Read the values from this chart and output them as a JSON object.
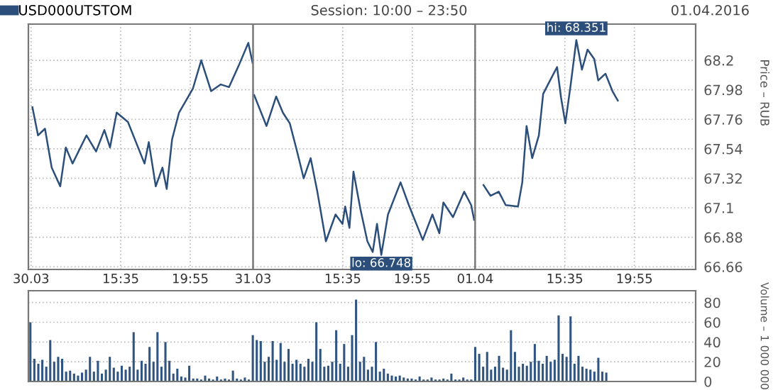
{
  "chart_data": [
    {
      "type": "line",
      "legend": "top left",
      "grid": true,
      "marker": "none",
      "line_style": "solid",
      "tick_labels": "x",
      "xlim": [
        "2016-03-30T09:50",
        "2016-03-30T23:50"
      ],
      "xticks": [
        {
          "value": "2016-03-30T10:00",
          "label": "30.03"
        },
        {
          "value": "2016-03-30T15:35",
          "label": "15:35"
        },
        {
          "value": "2016-03-30T19:55",
          "label": "19:55"
        }
      ],
      "ylim": [
        66.64,
        68.47
      ],
      "yticks": [
        66.66,
        66.88,
        67.1,
        67.32,
        67.54,
        67.76,
        67.98,
        68.2
      ],
      "series": [
        {
          "name": "USD000UTSTOM",
          "color": "#2b4f7a",
          "x": [
            "2016-03-30T10:05",
            "2016-03-30T10:26",
            "2016-03-30T10:52",
            "2016-03-30T11:17",
            "2016-03-30T11:49",
            "2016-03-30T12:10",
            "2016-03-30T12:35",
            "2016-03-30T13:27",
            "2016-03-30T14:03",
            "2016-03-30T14:34",
            "2016-03-30T14:55",
            "2016-03-30T15:20",
            "2016-03-30T16:02",
            "2016-03-30T17:04",
            "2016-03-30T17:20",
            "2016-03-30T17:46",
            "2016-03-30T18:11",
            "2016-03-30T18:27",
            "2016-03-30T18:47",
            "2016-03-30T19:13",
            "2016-03-30T20:05",
            "2016-03-30T20:36",
            "2016-03-30T21:13",
            "2016-03-30T21:49",
            "2016-03-30T22:20",
            "2016-03-30T22:56",
            "2016-03-30T23:32",
            "2016-03-30T23:48"
          ],
          "values": [
            67.85,
            67.64,
            67.69,
            67.4,
            67.26,
            67.55,
            67.43,
            67.64,
            67.52,
            67.68,
            67.55,
            67.81,
            67.74,
            67.43,
            67.59,
            67.26,
            67.4,
            67.24,
            67.61,
            67.81,
            67.99,
            68.2,
            67.97,
            68.02,
            68.0,
            68.16,
            68.33,
            68.18
          ]
        }
      ]
    },
    {
      "type": "line",
      "title": "Session: 10:00 – 23:50",
      "grid": true,
      "marker": "none",
      "line_style": "solid",
      "tick_labels": "x",
      "xlim": [
        "2016-03-31T10:00",
        "2016-03-31T23:50"
      ],
      "xticks": [
        {
          "value": "2016-03-31T10:00",
          "label": "31.03"
        },
        {
          "value": "2016-03-31T15:35",
          "label": "15:35"
        },
        {
          "value": "2016-03-31T19:55",
          "label": "19:55"
        }
      ],
      "ylim": [
        66.64,
        68.47
      ],
      "yticks": [
        66.66,
        66.88,
        67.1,
        67.32,
        67.54,
        67.76,
        67.98,
        68.2
      ],
      "annotations": [
        {
          "text": "lo: 66.748",
          "x": "2016-03-31T17:59",
          "y": 66.748
        }
      ],
      "series": [
        {
          "color": "#2b4f7a",
          "x": [
            "2016-03-31T10:04",
            "2016-03-31T10:50",
            "2016-03-31T11:26",
            "2016-03-31T11:51",
            "2016-03-31T12:17",
            "2016-03-31T12:43",
            "2016-03-31T13:09",
            "2016-03-31T13:35",
            "2016-03-31T14:00",
            "2016-03-31T14:32",
            "2016-03-31T15:08",
            "2016-03-31T15:34",
            "2016-03-31T15:44",
            "2016-03-31T16:00",
            "2016-03-31T16:15",
            "2016-03-31T16:41",
            "2016-03-31T17:07",
            "2016-03-31T17:27",
            "2016-03-31T17:43",
            "2016-03-31T17:59",
            "2016-03-31T18:24",
            "2016-03-31T19:11",
            "2016-03-31T19:42",
            "2016-03-31T20:34",
            "2016-03-31T21:10",
            "2016-03-31T21:36",
            "2016-03-31T21:51",
            "2016-03-31T22:27",
            "2016-03-31T23:09",
            "2016-03-31T23:35",
            "2016-03-31T23:46"
          ],
          "values": [
            67.94,
            67.71,
            67.93,
            67.81,
            67.73,
            67.53,
            67.32,
            67.47,
            67.22,
            66.85,
            67.05,
            66.98,
            67.11,
            66.95,
            67.37,
            67.09,
            66.85,
            66.77,
            66.98,
            66.748,
            67.05,
            67.29,
            67.12,
            66.86,
            67.05,
            66.91,
            67.14,
            67.03,
            67.22,
            67.12,
            67.01
          ]
        }
      ]
    },
    {
      "type": "line",
      "subtitle": "01.04.2016",
      "ylabel": "Price – RUB",
      "grid": true,
      "marker": "none",
      "line_style": "solid",
      "xlim": [
        "2016-04-01T10:00",
        "2016-04-01T23:44"
      ],
      "xticks": [
        {
          "value": "2016-04-01T10:00",
          "label": "01.04"
        },
        {
          "value": "2016-04-01T15:35",
          "label": "15:35"
        },
        {
          "value": "2016-04-01T19:55",
          "label": "19:55"
        }
      ],
      "ylim": [
        66.64,
        68.47
      ],
      "yticks": [
        66.66,
        66.88,
        67.1,
        67.32,
        67.54,
        67.76,
        67.98,
        68.2
      ],
      "annotations": [
        {
          "text": "hi: 68.351",
          "x": "2016-04-01T16:18",
          "y": 68.351
        }
      ],
      "series": [
        {
          "color": "#2b4f7a",
          "x": [
            "2016-04-01T10:31",
            "2016-04-01T10:57",
            "2016-04-01T11:28",
            "2016-04-01T11:54",
            "2016-04-01T12:40",
            "2016-04-01T12:56",
            "2016-04-01T13:12",
            "2016-04-01T13:33",
            "2016-04-01T13:58",
            "2016-04-01T14:14",
            "2016-04-01T14:40",
            "2016-04-01T15:06",
            "2016-04-01T15:21",
            "2016-04-01T15:37",
            "2016-04-01T15:57",
            "2016-04-01T16:18",
            "2016-04-01T16:39",
            "2016-04-01T17:00",
            "2016-04-01T17:25",
            "2016-04-01T17:40",
            "2016-04-01T18:07",
            "2016-04-01T18:33",
            "2016-04-01T18:53"
          ],
          "values": [
            67.27,
            67.19,
            67.22,
            67.12,
            67.11,
            67.29,
            67.71,
            67.47,
            67.64,
            67.95,
            68.05,
            68.15,
            67.92,
            67.73,
            68.02,
            68.351,
            68.13,
            68.28,
            68.21,
            68.05,
            68.1,
            67.97,
            67.9
          ]
        }
      ]
    },
    {
      "type": "bar",
      "ylabel": "Volume – 1 000 000",
      "grid": "y",
      "tick_labels": "y",
      "categories": [
        null,
        null,
        null,
        null,
        null,
        null,
        null,
        null,
        null,
        null,
        null,
        null,
        null,
        null,
        null,
        null,
        null,
        null,
        null,
        null,
        null,
        null,
        null,
        null,
        null,
        null,
        null,
        null,
        null,
        null,
        null,
        null,
        null,
        null,
        null,
        null,
        null,
        null,
        null,
        null,
        null,
        null,
        null,
        null,
        null,
        null,
        null,
        null,
        null,
        null,
        null,
        null,
        null,
        null,
        null,
        null,
        null,
        null,
        null,
        null,
        null,
        null,
        null,
        null,
        null,
        null,
        null,
        null,
        null,
        null,
        null,
        null,
        null,
        null,
        null,
        null,
        null,
        null,
        null,
        null,
        null,
        null,
        null,
        null,
        null,
        null,
        null,
        null,
        null,
        null,
        null,
        null,
        null,
        null,
        null,
        null,
        null,
        null,
        null,
        null,
        null,
        null,
        null,
        null,
        null,
        null,
        null,
        null,
        null,
        null,
        null,
        null,
        null,
        null,
        null,
        null,
        null,
        null,
        null,
        null,
        null,
        null,
        null,
        null,
        null,
        null,
        null,
        null,
        null,
        null,
        null,
        null,
        null,
        null,
        null,
        null,
        null,
        null,
        null,
        null,
        null,
        null,
        null,
        null,
        null,
        null,
        null,
        null,
        null,
        null,
        null,
        null,
        null,
        null,
        null,
        null,
        null,
        null,
        null,
        null,
        null,
        null,
        null,
        null,
        null,
        null,
        null,
        null
      ],
      "ylim": [
        0,
        92
      ],
      "yticks": [
        0,
        20,
        40,
        60,
        80
      ],
      "series": [
        {
          "color": "#2f5580",
          "values": [
            60,
            23,
            18,
            22,
            15,
            42,
            20,
            25,
            23,
            10,
            11,
            8,
            6,
            9,
            12,
            25,
            10,
            21,
            8,
            12,
            25,
            14,
            10,
            16,
            12,
            15,
            50,
            12,
            21,
            18,
            35,
            20,
            50,
            15,
            40,
            21,
            8,
            13,
            5,
            4,
            16,
            3,
            3,
            2,
            6,
            3,
            2,
            5,
            2,
            3,
            2,
            11,
            3,
            2,
            4,
            2,
            47,
            42,
            41,
            20,
            25,
            41,
            22,
            39,
            20,
            33,
            18,
            22,
            18,
            15,
            23,
            20,
            60,
            33,
            15,
            16,
            20,
            52,
            18,
            38,
            15,
            47,
            83,
            20,
            25,
            12,
            15,
            40,
            10,
            13,
            8,
            6,
            5,
            6,
            4,
            3,
            3,
            2,
            5,
            2,
            2,
            4,
            2,
            2,
            3,
            2,
            8,
            2,
            2,
            4,
            2,
            2,
            35,
            28,
            15,
            30,
            12,
            15,
            26,
            14,
            12,
            52,
            30,
            15,
            18,
            16,
            20,
            38,
            21,
            18,
            26,
            20,
            22,
            67,
            28,
            25,
            66,
            18,
            26,
            15,
            13,
            12,
            10,
            24,
            10,
            9,
            null,
            null,
            null,
            null,
            null,
            null,
            null,
            null,
            null,
            null,
            null,
            null,
            null,
            null,
            null,
            null,
            null,
            null,
            null,
            null,
            null,
            null
          ]
        }
      ]
    }
  ]
}
